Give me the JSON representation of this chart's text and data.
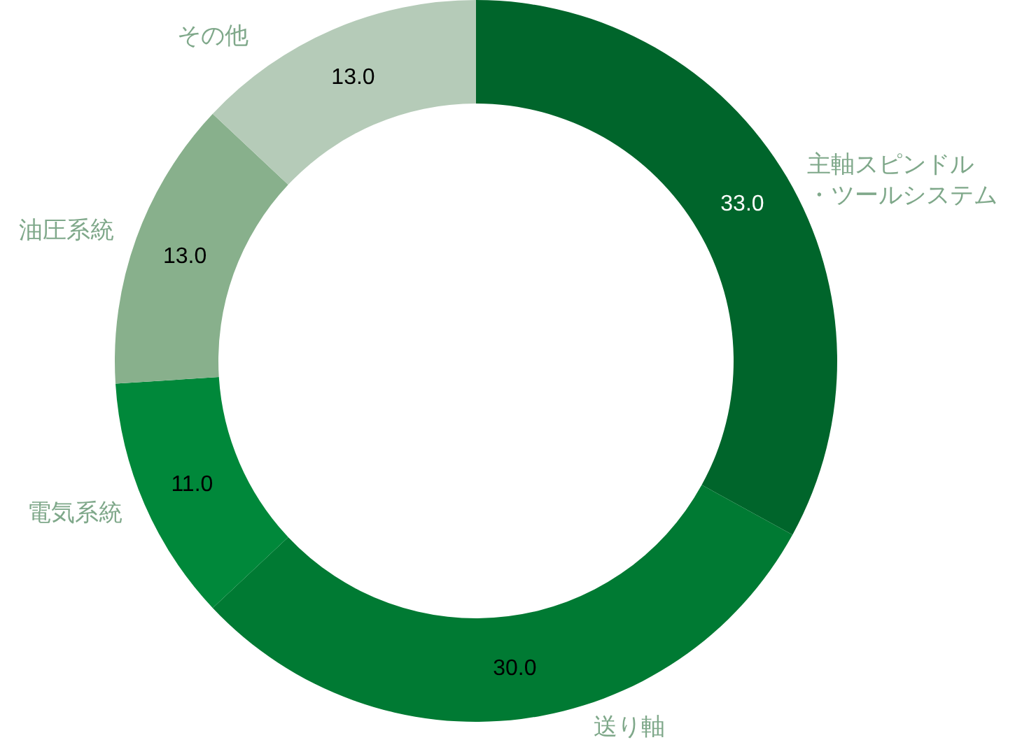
{
  "chart_data": {
    "type": "donut",
    "categories": [
      "主軸スピンドル・ツールシステム",
      "送り軸",
      "電気系統",
      "油圧系統",
      "その他"
    ],
    "values": [
      33.0,
      30.0,
      11.0,
      13.0,
      13.0
    ],
    "colors": [
      "#00652b",
      "#007a33",
      "#00883a",
      "#88b08c",
      "#b5cbb8"
    ],
    "value_labels": [
      "33.0",
      "30.0",
      "11.0",
      "13.0",
      "13.0"
    ]
  }
}
